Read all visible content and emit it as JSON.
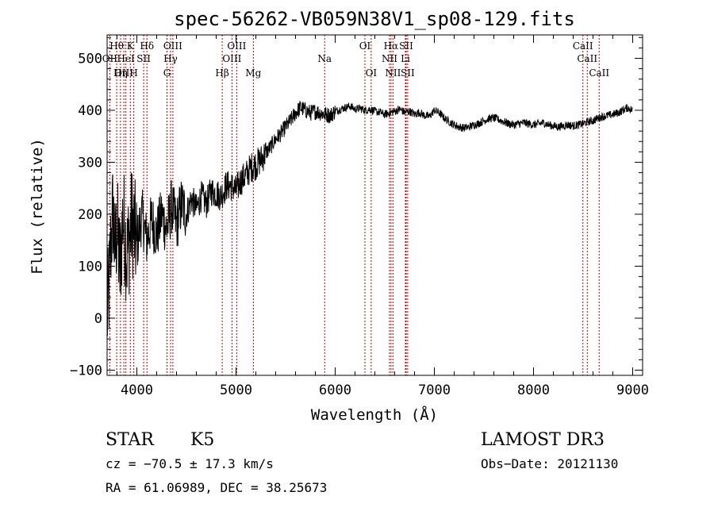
{
  "chart_data": {
    "type": "line",
    "title": "spec-56262-VB059N38V1_sp08-129.fits",
    "xlabel": "Wavelength (Å)",
    "ylabel": "Flux (relative)",
    "xlim": [
      3700,
      9100
    ],
    "ylim": [
      -110,
      545
    ],
    "xticks": [
      4000,
      5000,
      6000,
      7000,
      8000,
      9000
    ],
    "xtick_labels": [
      "4000",
      "5000",
      "6000",
      "7000",
      "8000",
      "9000"
    ],
    "yticks": [
      -100,
      0,
      100,
      200,
      300,
      400,
      500
    ],
    "ytick_labels": [
      "−100",
      "0",
      "100",
      "200",
      "300",
      "400",
      "500"
    ],
    "series": [
      {
        "name": "spectrum",
        "color": "#000000",
        "x": [
          3700,
          3720,
          3740,
          3760,
          3780,
          3800,
          3830,
          3860,
          3900,
          3950,
          4000,
          4050,
          4100,
          4150,
          4200,
          4250,
          4300,
          4350,
          4400,
          4450,
          4500,
          4550,
          4600,
          4650,
          4700,
          4750,
          4800,
          4850,
          4900,
          4950,
          5000,
          5050,
          5100,
          5150,
          5200,
          5250,
          5300,
          5350,
          5400,
          5450,
          5500,
          5550,
          5600,
          5650,
          5700,
          5750,
          5800,
          5850,
          5900,
          5950,
          6000,
          6050,
          6100,
          6150,
          6200,
          6250,
          6300,
          6350,
          6400,
          6450,
          6500,
          6550,
          6600,
          6650,
          6700,
          6750,
          6800,
          6850,
          6900,
          6950,
          7000,
          7050,
          7100,
          7150,
          7200,
          7250,
          7300,
          7350,
          7400,
          7450,
          7500,
          7550,
          7600,
          7650,
          7700,
          7750,
          7800,
          7850,
          7900,
          7950,
          8000,
          8050,
          8100,
          8150,
          8200,
          8250,
          8300,
          8350,
          8400,
          8450,
          8500,
          8550,
          8600,
          8650,
          8700,
          8750,
          8800,
          8850,
          8900,
          8950,
          9000
        ],
        "y": [
          0,
          60,
          150,
          210,
          120,
          180,
          90,
          200,
          120,
          190,
          140,
          200,
          150,
          190,
          160,
          200,
          170,
          215,
          180,
          220,
          200,
          230,
          210,
          235,
          220,
          245,
          240,
          235,
          255,
          255,
          245,
          265,
          275,
          290,
          295,
          305,
          318,
          330,
          345,
          355,
          368,
          380,
          395,
          405,
          400,
          395,
          398,
          395,
          392,
          390,
          398,
          402,
          405,
          408,
          402,
          404,
          400,
          402,
          398,
          396,
          392,
          395,
          398,
          402,
          396,
          398,
          392,
          396,
          390,
          388,
          400,
          395,
          385,
          378,
          372,
          368,
          366,
          368,
          372,
          375,
          380,
          384,
          385,
          382,
          378,
          374,
          372,
          374,
          376,
          374,
          372,
          374,
          376,
          372,
          370,
          368,
          370,
          372,
          370,
          372,
          374,
          378,
          380,
          385,
          388,
          390,
          392,
          395,
          400,
          405,
          400
        ]
      }
    ],
    "spectral_lines": [
      {
        "label": "Hθ",
        "wavelength": 3797,
        "row": 1
      },
      {
        "label": "OII",
        "wavelength": 3727,
        "row": 2
      },
      {
        "label": "OIII",
        "wavelength": 3869,
        "row": 3
      },
      {
        "label": "K",
        "wavelength": 3934,
        "row": 1
      },
      {
        "label": "HeI",
        "wavelength": 3889,
        "row": 2
      },
      {
        "label": "Hη",
        "wavelength": 3835,
        "row": 3
      },
      {
        "label": "H",
        "wavelength": 3969,
        "row": 3
      },
      {
        "label": "SII",
        "wavelength": 4069,
        "row": 2
      },
      {
        "label": "Hδ",
        "wavelength": 4102,
        "row": 1
      },
      {
        "label": "OIII",
        "wavelength": 4363,
        "row": 1
      },
      {
        "label": "Hγ",
        "wavelength": 4340,
        "row": 2
      },
      {
        "label": "G",
        "wavelength": 4304,
        "row": 3
      },
      {
        "label": "Hβ",
        "wavelength": 4861,
        "row": 3
      },
      {
        "label": "OIII",
        "wavelength": 5007,
        "row": 1
      },
      {
        "label": "OIII",
        "wavelength": 4959,
        "row": 2
      },
      {
        "label": "Mg",
        "wavelength": 5175,
        "row": 3
      },
      {
        "label": "Na",
        "wavelength": 5894,
        "row": 2
      },
      {
        "label": "OI",
        "wavelength": 6300,
        "row": 1
      },
      {
        "label": "OI",
        "wavelength": 6363,
        "row": 3
      },
      {
        "label": "Hα",
        "wavelength": 6563,
        "row": 1
      },
      {
        "label": "NII",
        "wavelength": 6548,
        "row": 2
      },
      {
        "label": "NII",
        "wavelength": 6583,
        "row": 3
      },
      {
        "label": "SII",
        "wavelength": 6716,
        "row": 1
      },
      {
        "label": "Li",
        "wavelength": 6708,
        "row": 2
      },
      {
        "label": "SII",
        "wavelength": 6731,
        "row": 3
      },
      {
        "label": "CaII",
        "wavelength": 8498,
        "row": 1
      },
      {
        "label": "CaII",
        "wavelength": 8542,
        "row": 2
      },
      {
        "label": "CaII",
        "wavelength": 8662,
        "row": 3
      }
    ],
    "line_marker_color": "#c00000"
  },
  "info": {
    "object_class": "STAR",
    "subclass": "K5",
    "survey": "LAMOST DR3",
    "redshift": "cz = −70.5 ± 17.3 km/s",
    "obs_date": "Obs−Date: 20121130",
    "coords": "RA =  61.06989, DEC =  38.25673"
  }
}
